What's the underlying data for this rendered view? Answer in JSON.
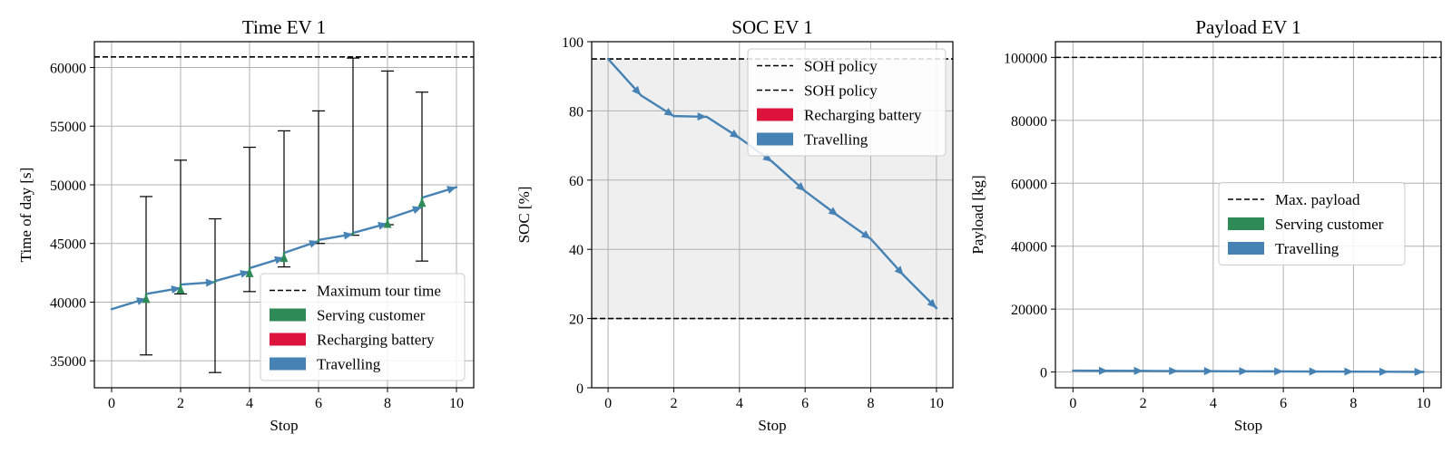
{
  "colors": {
    "travel": "#4682b4",
    "serve": "#2e8b57",
    "recharge": "#dc143c",
    "grid": "#b0b0b0",
    "shade": "#efefef",
    "ref": "#000000"
  },
  "chart_data": [
    {
      "type": "line",
      "title": "Time EV 1",
      "xlabel": "Stop",
      "ylabel": "Time of day [s]",
      "xlim": [
        -0.5,
        10.5
      ],
      "ylim": [
        32700,
        62200
      ],
      "xticks": [
        0,
        2,
        4,
        6,
        8,
        10
      ],
      "yticks": [
        35000,
        40000,
        45000,
        50000,
        55000,
        60000
      ],
      "grid": true,
      "legend_position": "lower-right",
      "hlines": [
        {
          "y": 60900,
          "style": "dashed",
          "label": "Maximum tour time"
        }
      ],
      "time_windows": [
        {
          "x": 1,
          "low": 35500,
          "high": 49000
        },
        {
          "x": 2,
          "low": 40700,
          "high": 52100
        },
        {
          "x": 3,
          "low": 34000,
          "high": 47100
        },
        {
          "x": 4,
          "low": 40900,
          "high": 53200
        },
        {
          "x": 5,
          "low": 43000,
          "high": 54600
        },
        {
          "x": 6,
          "low": 45000,
          "high": 56300
        },
        {
          "x": 7,
          "low": 45700,
          "high": 60800
        },
        {
          "x": 8,
          "low": 46600,
          "high": 59700
        },
        {
          "x": 9,
          "low": 43500,
          "high": 57900
        }
      ],
      "series": [
        {
          "name": "Travelling",
          "role": "travel",
          "x": [
            0,
            1,
            1,
            2,
            2,
            3,
            3,
            4,
            4,
            5,
            5,
            6,
            6,
            7,
            7,
            8,
            8,
            9,
            9,
            10
          ],
          "y": [
            39400,
            40300,
            40700,
            41200,
            41500,
            41700,
            41800,
            42600,
            42900,
            43800,
            44200,
            45200,
            45300,
            45800,
            45900,
            46700,
            47100,
            48100,
            48900,
            49800
          ]
        },
        {
          "name": "Serving customer",
          "role": "serve",
          "x": [
            1,
            2,
            3,
            4,
            5,
            6,
            7,
            8,
            9
          ],
          "y_start": [
            40300,
            41200,
            41700,
            42600,
            43800,
            45200,
            45800,
            46700,
            48100
          ],
          "y_end": [
            40700,
            41500,
            41800,
            42900,
            44200,
            45300,
            45900,
            47100,
            48900
          ]
        },
        {
          "name": "Recharging battery",
          "role": "recharge"
        }
      ]
    },
    {
      "type": "line",
      "title": "SOC EV 1",
      "xlabel": "Stop",
      "ylabel": "SOC [%]",
      "xlim": [
        -0.5,
        10.5
      ],
      "ylim": [
        0,
        100
      ],
      "xticks": [
        0,
        2,
        4,
        6,
        8,
        10
      ],
      "yticks": [
        0,
        20,
        40,
        60,
        80,
        100
      ],
      "grid": true,
      "legend_position": "top-right",
      "shaded_band": [
        20,
        95
      ],
      "hlines": [
        {
          "y": 95,
          "style": "dashed",
          "label": "SOH policy"
        },
        {
          "y": 20,
          "style": "dashed",
          "label": "SOH policy"
        }
      ],
      "series": [
        {
          "name": "Travelling",
          "role": "travel",
          "x": [
            0,
            1,
            2,
            3,
            4,
            5,
            6,
            7,
            8,
            9,
            10
          ],
          "y": [
            95,
            84.5,
            78.5,
            78.3,
            72.2,
            65.3,
            56.8,
            49.7,
            43,
            32.5,
            23
          ]
        },
        {
          "name": "Recharging battery",
          "role": "recharge"
        }
      ]
    },
    {
      "type": "line",
      "title": "Payload EV 1",
      "xlabel": "Stop",
      "ylabel": "Payload [kg]",
      "xlim": [
        -0.5,
        10.5
      ],
      "ylim": [
        -5000,
        105000
      ],
      "xticks": [
        0,
        2,
        4,
        6,
        8,
        10
      ],
      "yticks": [
        0,
        20000,
        40000,
        60000,
        80000,
        100000
      ],
      "grid": true,
      "legend_position": "center-right",
      "hlines": [
        {
          "y": 100000,
          "style": "dashed",
          "label": "Max. payload"
        }
      ],
      "series": [
        {
          "name": "Travelling",
          "role": "travel",
          "x": [
            0,
            1,
            2,
            3,
            4,
            5,
            6,
            7,
            8,
            9,
            10
          ],
          "y": [
            450,
            400,
            360,
            320,
            280,
            240,
            200,
            160,
            120,
            80,
            40
          ]
        },
        {
          "name": "Serving customer",
          "role": "serve"
        }
      ]
    }
  ]
}
